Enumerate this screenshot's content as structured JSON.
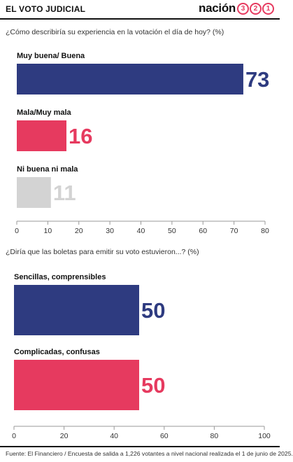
{
  "header": {
    "title": "EL VOTO JUDICIAL",
    "brand_name": "nación",
    "brand_digits": [
      "3",
      "2",
      "1"
    ]
  },
  "colors": {
    "navy": "#2e3b80",
    "pink": "#e63a5f",
    "gray": "#d3d3d3",
    "value_gray": "#d3d3d3"
  },
  "chart_data": [
    {
      "type": "bar",
      "orientation": "horizontal",
      "title": "¿Cómo describiría su experiencia en la votación el día de hoy? (%)",
      "categories": [
        "Muy buena/ Buena",
        "Mala/Muy mala",
        "Ni buena ni mala"
      ],
      "values": [
        73,
        16,
        11
      ],
      "bar_colors": [
        "#2e3b80",
        "#e63a5f",
        "#d3d3d3"
      ],
      "xlim": [
        0,
        80
      ],
      "xticks": [
        0,
        10,
        20,
        30,
        40,
        50,
        60,
        70,
        80
      ],
      "grid": false
    },
    {
      "type": "bar",
      "orientation": "horizontal",
      "title": "¿Diría que las boletas para emitir su voto estuvieron...? (%)",
      "categories": [
        "Sencillas, comprensibles",
        "Complicadas, confusas"
      ],
      "values": [
        50,
        50
      ],
      "bar_colors": [
        "#2e3b80",
        "#e63a5f"
      ],
      "xlim": [
        0,
        100
      ],
      "xticks": [
        0,
        20,
        40,
        60,
        80,
        100
      ],
      "grid": false
    }
  ],
  "footer": "Fuente: El Financiero / Encuesta de salida a 1,226 votantes a nivel nacional realizada el 1 de junio de 2025."
}
